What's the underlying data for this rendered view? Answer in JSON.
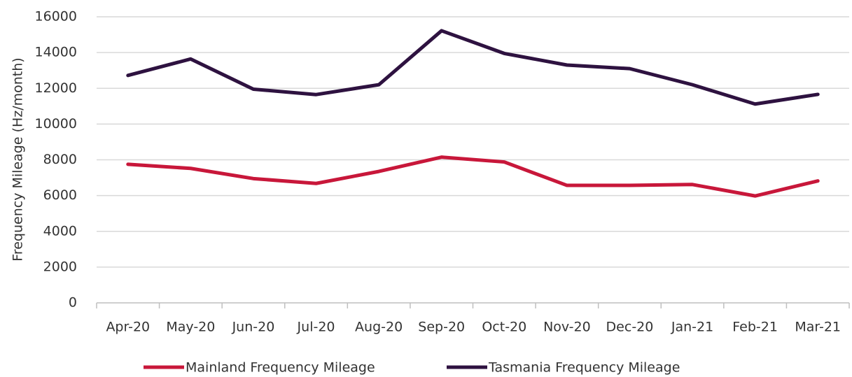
{
  "chart_data": {
    "type": "line",
    "y_label": "Frequency Mileage (Hz/month)",
    "categories": [
      "Apr-20",
      "May-20",
      "Jun-20",
      "Jul-20",
      "Aug-20",
      "Sep-20",
      "Oct-20",
      "Nov-20",
      "Dec-20",
      "Jan-21",
      "Feb-21",
      "Mar-21"
    ],
    "series": [
      {
        "name": "Mainland Frequency Mileage",
        "color": "#c8173a",
        "values": [
          7750,
          7520,
          6950,
          6680,
          7350,
          8150,
          7880,
          6570,
          6570,
          6620,
          5980,
          6820
        ]
      },
      {
        "name": "Tasmania Frequency Mileage",
        "color": "#2e1240",
        "values": [
          12720,
          13640,
          11950,
          11650,
          12200,
          15220,
          13950,
          13300,
          13100,
          12200,
          11120,
          11660
        ]
      }
    ],
    "ylim": [
      0,
      16000
    ],
    "yticks": [
      0,
      2000,
      4000,
      6000,
      8000,
      10000,
      12000,
      14000,
      16000
    ],
    "grid": true,
    "legend": "bottom"
  }
}
